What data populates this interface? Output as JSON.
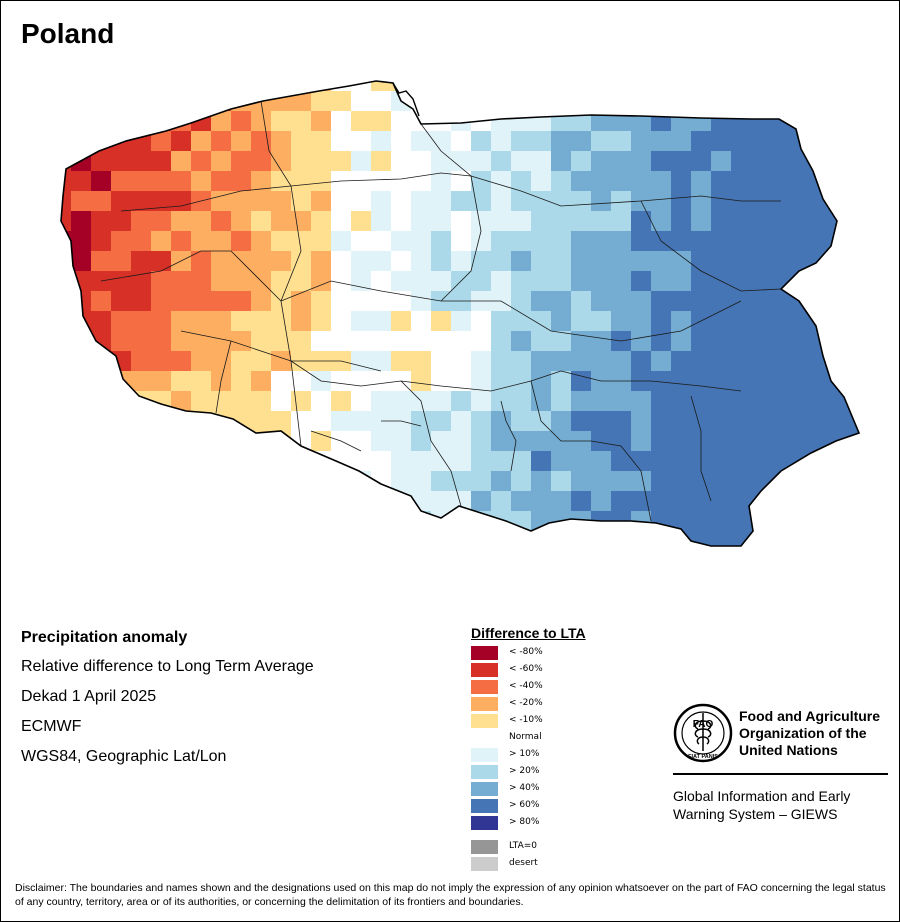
{
  "map": {
    "title": "Poland",
    "legend": {
      "title": "Difference to LTA",
      "classes": [
        {
          "label": "< -80%",
          "color": "#a50026"
        },
        {
          "label": "< -60%",
          "color": "#d73027"
        },
        {
          "label": "< -40%",
          "color": "#f46d43"
        },
        {
          "label": "< -20%",
          "color": "#fdae61"
        },
        {
          "label": "< -10%",
          "color": "#fee090"
        },
        {
          "label": "Normal",
          "color": "#ffffff"
        },
        {
          "label": "> 10%",
          "color": "#e0f3f8"
        },
        {
          "label": "> 20%",
          "color": "#abd9e9"
        },
        {
          "label": "> 40%",
          "color": "#74add1"
        },
        {
          "label": "> 60%",
          "color": "#4575b4"
        },
        {
          "label": "> 80%",
          "color": "#313695"
        }
      ],
      "extra": [
        {
          "label": "LTA=0",
          "color": "#969696"
        },
        {
          "label": "desert",
          "color": "#cccccc"
        }
      ]
    },
    "info": {
      "heading": "Precipitation anomaly",
      "lines": [
        "Relative difference to Long Term Average",
        "Dekad 1 April 2025",
        "ECMWF",
        "WGS84, Geographic Lat/Lon"
      ]
    },
    "org": {
      "name_lines": [
        "Food and Agriculture",
        "Organization of the",
        "United Nations"
      ],
      "system_lines": [
        "Global Information and Early",
        "Warning System – GIEWS"
      ],
      "emblem_text": "FAO",
      "emblem_motto": "FIAT PANIS"
    },
    "disclaimer": "Disclaimer: The boundaries and names shown and the designations used on this map do not imply the expression of any opinion whatsoever on the part of FAO concerning the legal status of any country, territory, area or of its authorities, or concerning the delimitation of its frontiers and boundaries."
  }
}
